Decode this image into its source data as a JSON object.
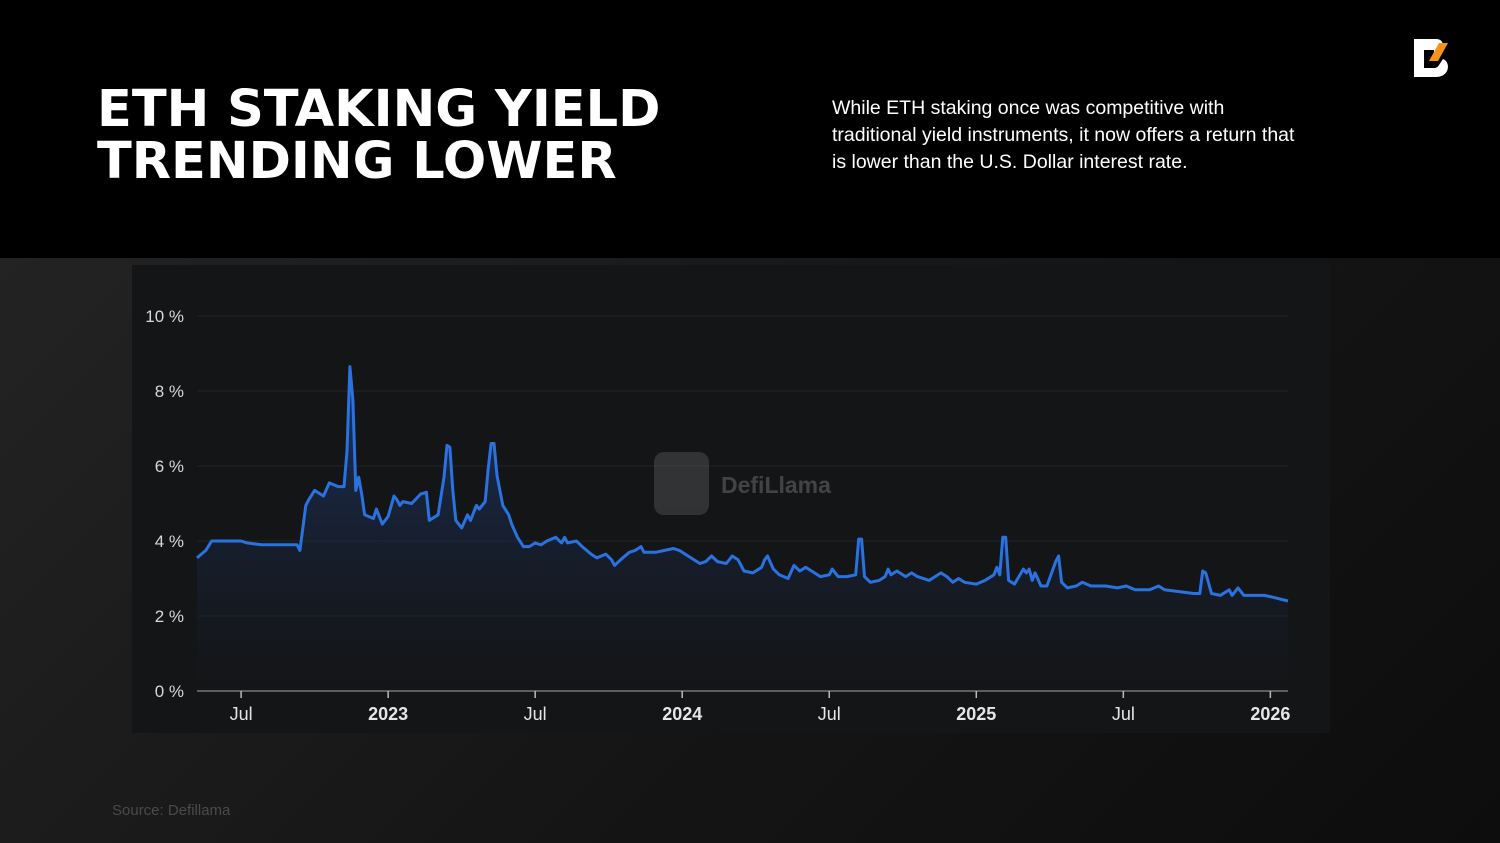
{
  "header": {
    "title_line1": "ETH STAKING YIELD",
    "title_line2": "TRENDING LOWER",
    "description": "While ETH staking once was competitive with traditional yield instruments, it now offers a return that is lower than the U.S. Dollar interest rate.",
    "logo_icon": "brand-b-logo-icon"
  },
  "watermark": "DefiLlama",
  "source": "Source: Defillama",
  "colors": {
    "line": "#2a72e0",
    "accent": "#f7931a",
    "background": "#000000",
    "card": "#141517"
  },
  "chart_data": {
    "type": "area",
    "title": "",
    "xlabel": "",
    "ylabel": "",
    "ylim": [
      0,
      10
    ],
    "xlim": [
      2022.35,
      2026.06
    ],
    "grid": true,
    "legend": "none",
    "y_ticks": [
      {
        "value": 0,
        "label": "0 %"
      },
      {
        "value": 2,
        "label": "2 %"
      },
      {
        "value": 4,
        "label": "4 %"
      },
      {
        "value": 6,
        "label": "6 %"
      },
      {
        "value": 8,
        "label": "8 %"
      },
      {
        "value": 10,
        "label": "10 %"
      }
    ],
    "x_ticks": [
      {
        "value": 2022.5,
        "label": "Jul",
        "bold": false
      },
      {
        "value": 2023.0,
        "label": "2023",
        "bold": true
      },
      {
        "value": 2023.5,
        "label": "Jul",
        "bold": false
      },
      {
        "value": 2024.0,
        "label": "2024",
        "bold": true
      },
      {
        "value": 2024.5,
        "label": "Jul",
        "bold": false
      },
      {
        "value": 2025.0,
        "label": "2025",
        "bold": true
      },
      {
        "value": 2025.5,
        "label": "Jul",
        "bold": false
      },
      {
        "value": 2026.0,
        "label": "2026",
        "bold": true
      }
    ],
    "series": [
      {
        "name": "ETH staking yield (%)",
        "points": [
          [
            2022.35,
            3.55
          ],
          [
            2022.38,
            3.75
          ],
          [
            2022.4,
            4.0
          ],
          [
            2022.5,
            4.0
          ],
          [
            2022.52,
            3.95
          ],
          [
            2022.57,
            3.9
          ],
          [
            2022.69,
            3.9
          ],
          [
            2022.7,
            3.75
          ],
          [
            2022.72,
            4.95
          ],
          [
            2022.73,
            5.1
          ],
          [
            2022.75,
            5.35
          ],
          [
            2022.78,
            5.2
          ],
          [
            2022.8,
            5.55
          ],
          [
            2022.83,
            5.45
          ],
          [
            2022.85,
            5.45
          ],
          [
            2022.86,
            6.4
          ],
          [
            2022.87,
            8.65
          ],
          [
            2022.88,
            7.75
          ],
          [
            2022.89,
            5.35
          ],
          [
            2022.9,
            5.7
          ],
          [
            2022.91,
            5.25
          ],
          [
            2022.92,
            4.7
          ],
          [
            2022.95,
            4.6
          ],
          [
            2022.96,
            4.85
          ],
          [
            2022.98,
            4.45
          ],
          [
            2023.0,
            4.65
          ],
          [
            2023.02,
            5.2
          ],
          [
            2023.03,
            5.1
          ],
          [
            2023.04,
            4.95
          ],
          [
            2023.05,
            5.05
          ],
          [
            2023.08,
            5.0
          ],
          [
            2023.11,
            5.25
          ],
          [
            2023.13,
            5.3
          ],
          [
            2023.14,
            4.55
          ],
          [
            2023.17,
            4.7
          ],
          [
            2023.19,
            5.7
          ],
          [
            2023.2,
            6.55
          ],
          [
            2023.21,
            6.5
          ],
          [
            2023.22,
            5.35
          ],
          [
            2023.23,
            4.55
          ],
          [
            2023.25,
            4.35
          ],
          [
            2023.27,
            4.7
          ],
          [
            2023.28,
            4.55
          ],
          [
            2023.3,
            4.95
          ],
          [
            2023.31,
            4.85
          ],
          [
            2023.33,
            5.05
          ],
          [
            2023.34,
            5.9
          ],
          [
            2023.35,
            6.6
          ],
          [
            2023.36,
            6.6
          ],
          [
            2023.37,
            5.75
          ],
          [
            2023.39,
            4.95
          ],
          [
            2023.41,
            4.7
          ],
          [
            2023.42,
            4.45
          ],
          [
            2023.44,
            4.1
          ],
          [
            2023.46,
            3.85
          ],
          [
            2023.48,
            3.85
          ],
          [
            2023.5,
            3.95
          ],
          [
            2023.52,
            3.9
          ],
          [
            2023.54,
            4.0
          ],
          [
            2023.57,
            4.1
          ],
          [
            2023.59,
            3.95
          ],
          [
            2023.6,
            4.1
          ],
          [
            2023.61,
            3.95
          ],
          [
            2023.64,
            4.0
          ],
          [
            2023.66,
            3.85
          ],
          [
            2023.69,
            3.65
          ],
          [
            2023.71,
            3.55
          ],
          [
            2023.74,
            3.65
          ],
          [
            2023.76,
            3.5
          ],
          [
            2023.77,
            3.35
          ],
          [
            2023.79,
            3.5
          ],
          [
            2023.82,
            3.7
          ],
          [
            2023.84,
            3.75
          ],
          [
            2023.86,
            3.85
          ],
          [
            2023.87,
            3.7
          ],
          [
            2023.91,
            3.7
          ],
          [
            2023.94,
            3.75
          ],
          [
            2023.97,
            3.8
          ],
          [
            2023.99,
            3.75
          ],
          [
            2024.02,
            3.6
          ],
          [
            2024.04,
            3.5
          ],
          [
            2024.06,
            3.4
          ],
          [
            2024.08,
            3.45
          ],
          [
            2024.1,
            3.6
          ],
          [
            2024.12,
            3.45
          ],
          [
            2024.15,
            3.4
          ],
          [
            2024.17,
            3.6
          ],
          [
            2024.19,
            3.5
          ],
          [
            2024.21,
            3.2
          ],
          [
            2024.24,
            3.15
          ],
          [
            2024.27,
            3.3
          ],
          [
            2024.28,
            3.5
          ],
          [
            2024.29,
            3.6
          ],
          [
            2024.31,
            3.25
          ],
          [
            2024.33,
            3.1
          ],
          [
            2024.36,
            3.0
          ],
          [
            2024.38,
            3.35
          ],
          [
            2024.4,
            3.2
          ],
          [
            2024.42,
            3.3
          ],
          [
            2024.44,
            3.2
          ],
          [
            2024.47,
            3.05
          ],
          [
            2024.5,
            3.1
          ],
          [
            2024.51,
            3.25
          ],
          [
            2024.53,
            3.05
          ],
          [
            2024.56,
            3.05
          ],
          [
            2024.59,
            3.1
          ],
          [
            2024.6,
            4.05
          ],
          [
            2024.61,
            4.05
          ],
          [
            2024.62,
            3.05
          ],
          [
            2024.64,
            2.9
          ],
          [
            2024.67,
            2.95
          ],
          [
            2024.69,
            3.05
          ],
          [
            2024.7,
            3.25
          ],
          [
            2024.71,
            3.1
          ],
          [
            2024.73,
            3.2
          ],
          [
            2024.76,
            3.05
          ],
          [
            2024.78,
            3.15
          ],
          [
            2024.8,
            3.05
          ],
          [
            2024.84,
            2.95
          ],
          [
            2024.86,
            3.05
          ],
          [
            2024.88,
            3.15
          ],
          [
            2024.9,
            3.05
          ],
          [
            2024.92,
            2.9
          ],
          [
            2024.94,
            3.0
          ],
          [
            2024.96,
            2.9
          ],
          [
            2025.0,
            2.85
          ],
          [
            2025.03,
            2.95
          ],
          [
            2025.06,
            3.1
          ],
          [
            2025.07,
            3.3
          ],
          [
            2025.08,
            3.1
          ],
          [
            2025.09,
            4.1
          ],
          [
            2025.1,
            4.1
          ],
          [
            2025.11,
            2.95
          ],
          [
            2025.13,
            2.85
          ],
          [
            2025.16,
            3.25
          ],
          [
            2025.17,
            3.15
          ],
          [
            2025.18,
            3.25
          ],
          [
            2025.19,
            2.95
          ],
          [
            2025.2,
            3.15
          ],
          [
            2025.22,
            2.8
          ],
          [
            2025.24,
            2.8
          ],
          [
            2025.27,
            3.45
          ],
          [
            2025.28,
            3.6
          ],
          [
            2025.29,
            2.9
          ],
          [
            2025.31,
            2.75
          ],
          [
            2025.34,
            2.8
          ],
          [
            2025.36,
            2.9
          ],
          [
            2025.39,
            2.8
          ],
          [
            2025.44,
            2.8
          ],
          [
            2025.48,
            2.75
          ],
          [
            2025.51,
            2.8
          ],
          [
            2025.54,
            2.7
          ],
          [
            2025.59,
            2.7
          ],
          [
            2025.62,
            2.8
          ],
          [
            2025.64,
            2.7
          ],
          [
            2025.69,
            2.65
          ],
          [
            2025.74,
            2.6
          ],
          [
            2025.76,
            2.6
          ],
          [
            2025.77,
            3.2
          ],
          [
            2025.78,
            3.15
          ],
          [
            2025.8,
            2.6
          ],
          [
            2025.83,
            2.55
          ],
          [
            2025.86,
            2.7
          ],
          [
            2025.87,
            2.55
          ],
          [
            2025.89,
            2.75
          ],
          [
            2025.91,
            2.55
          ],
          [
            2025.95,
            2.55
          ],
          [
            2025.98,
            2.55
          ],
          [
            2026.01,
            2.5
          ],
          [
            2026.06,
            2.4
          ]
        ]
      }
    ]
  }
}
